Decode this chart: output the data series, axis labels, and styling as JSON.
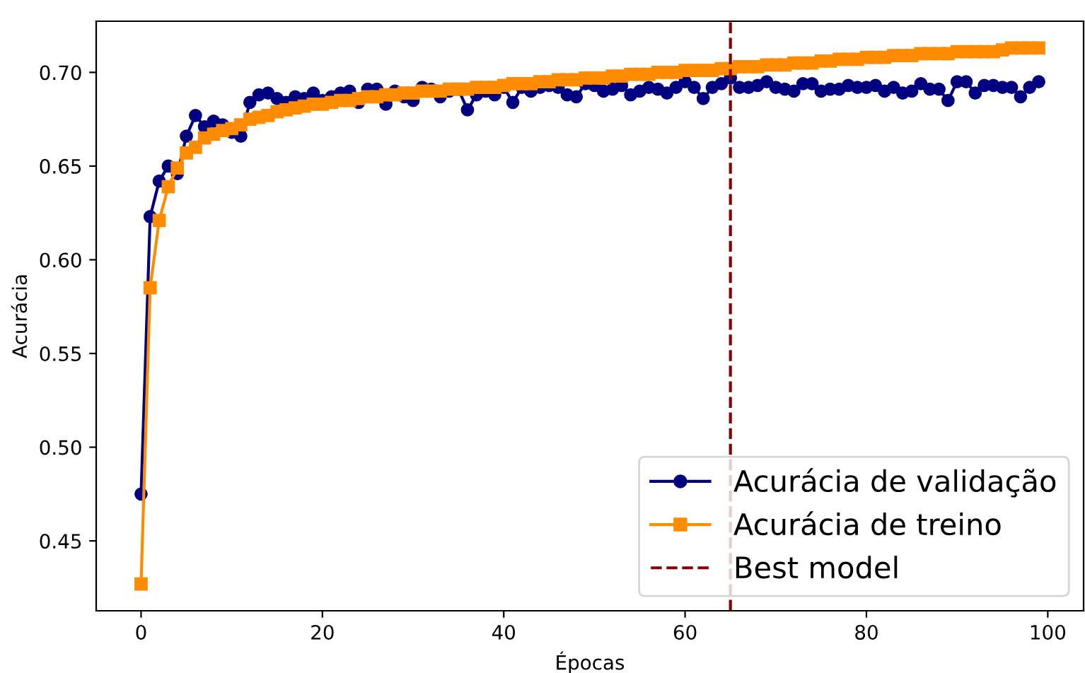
{
  "chart_data": {
    "type": "line",
    "xlabel": "Épocas",
    "ylabel": "Acurácia",
    "x": [
      0,
      1,
      2,
      3,
      4,
      5,
      6,
      7,
      8,
      9,
      10,
      11,
      12,
      13,
      14,
      15,
      16,
      17,
      18,
      19,
      20,
      21,
      22,
      23,
      24,
      25,
      26,
      27,
      28,
      29,
      30,
      31,
      32,
      33,
      34,
      35,
      36,
      37,
      38,
      39,
      40,
      41,
      42,
      43,
      44,
      45,
      46,
      47,
      48,
      49,
      50,
      51,
      52,
      53,
      54,
      55,
      56,
      57,
      58,
      59,
      60,
      61,
      62,
      63,
      64,
      65,
      66,
      67,
      68,
      69,
      70,
      71,
      72,
      73,
      74,
      75,
      76,
      77,
      78,
      79,
      80,
      81,
      82,
      83,
      84,
      85,
      86,
      87,
      88,
      89,
      90,
      91,
      92,
      93,
      94,
      95,
      96,
      97,
      98,
      99
    ],
    "series": [
      {
        "name": "Acurácia de validação",
        "color": "#000080",
        "marker": "circle",
        "values": [
          0.475,
          0.623,
          0.642,
          0.65,
          0.646,
          0.666,
          0.677,
          0.671,
          0.674,
          0.672,
          0.668,
          0.666,
          0.684,
          0.688,
          0.689,
          0.686,
          0.684,
          0.687,
          0.686,
          0.689,
          0.685,
          0.687,
          0.689,
          0.69,
          0.684,
          0.691,
          0.691,
          0.683,
          0.69,
          0.687,
          0.685,
          0.692,
          0.691,
          0.687,
          0.69,
          0.691,
          0.68,
          0.688,
          0.69,
          0.688,
          0.692,
          0.684,
          0.692,
          0.69,
          0.692,
          0.693,
          0.692,
          0.688,
          0.687,
          0.694,
          0.693,
          0.69,
          0.691,
          0.693,
          0.688,
          0.69,
          0.692,
          0.691,
          0.689,
          0.692,
          0.695,
          0.692,
          0.686,
          0.692,
          0.694,
          0.697,
          0.692,
          0.692,
          0.693,
          0.695,
          0.692,
          0.691,
          0.69,
          0.694,
          0.694,
          0.69,
          0.691,
          0.691,
          0.693,
          0.692,
          0.692,
          0.693,
          0.69,
          0.692,
          0.689,
          0.69,
          0.694,
          0.691,
          0.691,
          0.685,
          0.695,
          0.695,
          0.689,
          0.693,
          0.693,
          0.692,
          0.692,
          0.687,
          0.692,
          0.695
        ]
      },
      {
        "name": "Acurácia de treino",
        "color": "#ff8c00",
        "marker": "square",
        "values": [
          0.427,
          0.585,
          0.621,
          0.639,
          0.649,
          0.657,
          0.66,
          0.665,
          0.667,
          0.669,
          0.67,
          0.672,
          0.675,
          0.676,
          0.677,
          0.679,
          0.68,
          0.681,
          0.682,
          0.683,
          0.683,
          0.684,
          0.685,
          0.685,
          0.686,
          0.687,
          0.687,
          0.688,
          0.688,
          0.689,
          0.689,
          0.69,
          0.69,
          0.69,
          0.691,
          0.691,
          0.691,
          0.692,
          0.692,
          0.692,
          0.693,
          0.694,
          0.694,
          0.694,
          0.695,
          0.695,
          0.696,
          0.696,
          0.696,
          0.697,
          0.697,
          0.697,
          0.698,
          0.698,
          0.699,
          0.699,
          0.699,
          0.7,
          0.7,
          0.7,
          0.701,
          0.701,
          0.701,
          0.701,
          0.702,
          0.702,
          0.703,
          0.703,
          0.703,
          0.704,
          0.704,
          0.704,
          0.705,
          0.705,
          0.705,
          0.706,
          0.706,
          0.707,
          0.707,
          0.707,
          0.708,
          0.708,
          0.708,
          0.709,
          0.709,
          0.709,
          0.71,
          0.71,
          0.71,
          0.71,
          0.711,
          0.711,
          0.711,
          0.711,
          0.711,
          0.712,
          0.713,
          0.713,
          0.713,
          0.713
        ]
      }
    ],
    "ref_lines": [
      {
        "axis": "x",
        "value": 65,
        "label": "Best model",
        "color": "#8b0000",
        "line_style": "dashed"
      }
    ],
    "xlim": [
      -4.95,
      103.95
    ],
    "xticks": [
      0,
      20,
      40,
      60,
      80,
      100
    ],
    "ylim": [
      0.4127,
      0.7273
    ],
    "yticks": [
      {
        "value": 0.45,
        "label": "0.45"
      },
      {
        "value": 0.5,
        "label": "0.50"
      },
      {
        "value": 0.55,
        "label": "0.55"
      },
      {
        "value": 0.6,
        "label": "0.60"
      },
      {
        "value": 0.65,
        "label": "0.65"
      },
      {
        "value": 0.7,
        "label": "0.70"
      }
    ],
    "grid": false,
    "legend": "bottom right"
  }
}
